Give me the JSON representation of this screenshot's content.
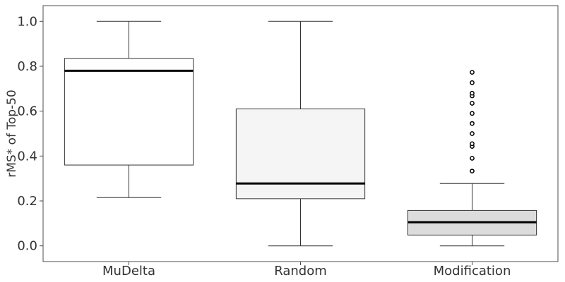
{
  "chart_data": {
    "type": "boxplot",
    "title": "",
    "xlabel": "",
    "ylabel": "rMS* of Top-50",
    "ylim": [
      -0.07,
      1.07
    ],
    "yticks": [
      0.0,
      0.2,
      0.4,
      0.6,
      0.8,
      1.0
    ],
    "ytick_labels": [
      "0.0",
      "0.2",
      "0.4",
      "0.6",
      "0.8",
      "1.0"
    ],
    "grid": false,
    "categories": [
      "MuDelta",
      "Random",
      "Modification"
    ],
    "boxes": [
      {
        "category": "MuDelta",
        "whisker_low": 0.215,
        "q1": 0.36,
        "median": 0.78,
        "q3": 0.835,
        "whisker_high": 1.0,
        "fill": "#ffffff",
        "outliers": []
      },
      {
        "category": "Random",
        "whisker_low": 0.0,
        "q1": 0.21,
        "median": 0.278,
        "q3": 0.61,
        "whisker_high": 1.0,
        "fill": "#f5f5f5",
        "outliers": []
      },
      {
        "category": "Modification",
        "whisker_low": 0.0,
        "q1": 0.048,
        "median": 0.105,
        "q3": 0.158,
        "whisker_high": 0.278,
        "fill": "#dcdcdc",
        "outliers": [
          0.333,
          0.39,
          0.443,
          0.455,
          0.5,
          0.545,
          0.59,
          0.635,
          0.668,
          0.68,
          0.727,
          0.773
        ]
      }
    ]
  }
}
